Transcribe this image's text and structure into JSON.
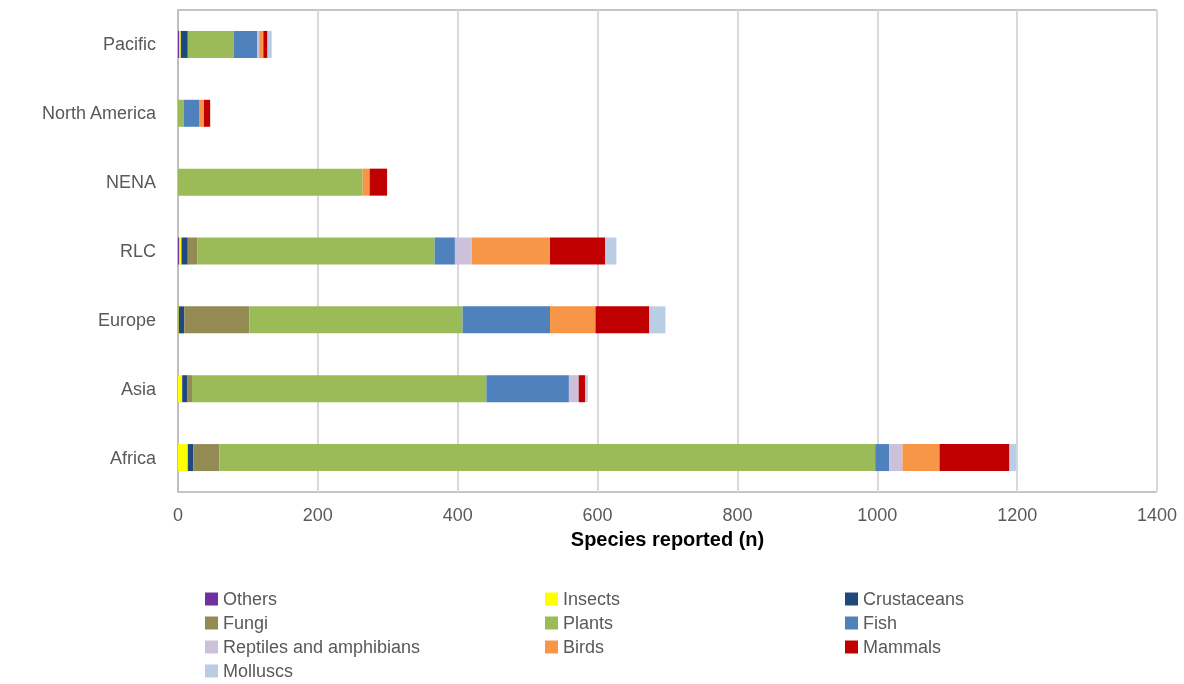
{
  "chart_data": {
    "type": "bar",
    "orientation": "horizontal",
    "stacked": true,
    "xlabel": "Species reported (n)",
    "categories": [
      "Pacific",
      "North America",
      "NENA",
      "RLC",
      "Europe",
      "Asia",
      "Africa"
    ],
    "xlim": [
      0,
      1400
    ],
    "xticks": [
      0,
      200,
      400,
      600,
      800,
      1000,
      1200,
      1400
    ],
    "grid": "x",
    "legend": "bottom",
    "series": [
      {
        "name": "Others",
        "color": "#7030a0",
        "values": [
          2,
          0,
          0,
          2,
          0,
          0,
          0
        ]
      },
      {
        "name": "Insects",
        "color": "#ffff00",
        "values": [
          2,
          0,
          0,
          3,
          1,
          6,
          14
        ]
      },
      {
        "name": "Crustaceans",
        "color": "#1f497d",
        "values": [
          10,
          0,
          0,
          9,
          8,
          7,
          8
        ]
      },
      {
        "name": "Fungi",
        "color": "#948a54",
        "values": [
          0,
          0,
          0,
          14,
          93,
          7,
          37
        ]
      },
      {
        "name": "Plants",
        "color": "#9bbb59",
        "values": [
          66,
          8,
          264,
          339,
          305,
          421,
          938
        ]
      },
      {
        "name": "Fish",
        "color": "#4f81bd",
        "values": [
          33,
          22,
          0,
          29,
          125,
          118,
          20
        ]
      },
      {
        "name": "Reptiles and amphibians",
        "color": "#ccc0da",
        "values": [
          3,
          0,
          0,
          24,
          0,
          14,
          19
        ]
      },
      {
        "name": "Birds",
        "color": "#f79646",
        "values": [
          6,
          7,
          10,
          112,
          65,
          0,
          53
        ]
      },
      {
        "name": "Mammals",
        "color": "#c00000",
        "values": [
          6,
          9,
          25,
          79,
          77,
          9,
          100
        ]
      },
      {
        "name": "Molluscs",
        "color": "#b9cde5",
        "values": [
          6,
          null,
          0,
          16,
          23,
          4,
          10
        ]
      }
    ]
  }
}
